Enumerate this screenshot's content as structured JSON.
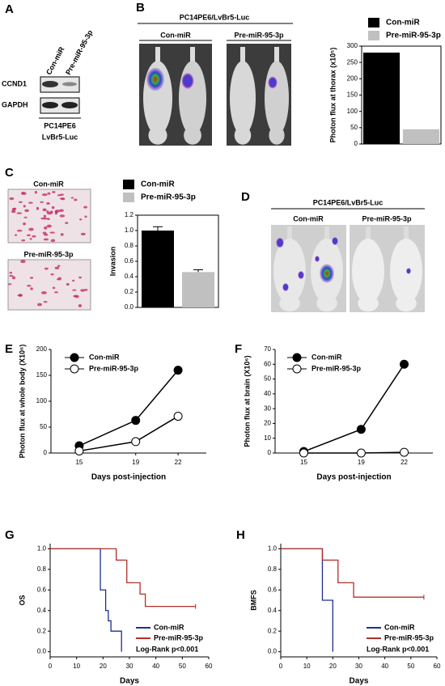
{
  "figure": {
    "panel_labels": [
      "A",
      "B",
      "C",
      "D",
      "E",
      "F",
      "G",
      "H"
    ],
    "blot": {
      "lanes": [
        "Con-miR",
        "Pre-miR-95-3p"
      ],
      "rows": [
        "CCND1",
        "GAPDH"
      ],
      "cell_line": [
        "PC14PE6",
        "LvBr5-Luc"
      ]
    },
    "b_images": {
      "title": "PC14PE6/LvBr5-Luc",
      "groups": [
        "Con-miR",
        "Pre-miR-95-3p"
      ]
    },
    "c_images": {
      "groups": [
        "Con-miR",
        "Pre-miR-95-3p"
      ]
    },
    "d_images": {
      "title": "PC14PE6/LvBr5-Luc",
      "groups": [
        "Con-miR",
        "Pre-miR-95-3p"
      ]
    }
  },
  "chart_data": [
    {
      "type": "bar",
      "categories": [
        "Con-miR",
        "Pre-miR-95-3p"
      ],
      "values": [
        280,
        45
      ],
      "colors": [
        "#000000",
        "#c0c0c0"
      ],
      "ylabel": "Photon flux at thorax (x10⁵)",
      "ylim": [
        0,
        300
      ],
      "yticks": [
        0,
        50,
        100,
        150,
        200,
        250,
        300
      ]
    },
    {
      "type": "bar",
      "categories": [
        "Con-miR",
        "Pre-miR-95-3p"
      ],
      "values": [
        1.0,
        0.46
      ],
      "errors": [
        0.05,
        0.03
      ],
      "colors": [
        "#000000",
        "#c0c0c0"
      ],
      "ylabel": "Invasion",
      "ylim": [
        0,
        1.2
      ],
      "yticks": [
        {
          "value": 0,
          "label": "0.0"
        },
        0.2,
        0.4,
        0.6,
        0.8,
        {
          "value": 1,
          "label": "1.0"
        },
        1.2
      ]
    },
    {
      "type": "line",
      "x": [
        15,
        19,
        22
      ],
      "xlim": [
        13,
        24
      ],
      "xticks": [
        15,
        19,
        22
      ],
      "ylim": [
        0,
        200
      ],
      "yticks": [
        0,
        50,
        100,
        150,
        200
      ],
      "xlabel": "Days post-injection",
      "ylabel": "Photon flux at whole body (X10⁶)",
      "series": [
        {
          "name": "Con-miR",
          "color": "#000000",
          "fill": "#000000",
          "values": [
            14,
            63,
            160
          ]
        },
        {
          "name": "Pre-miR-95-3p",
          "color": "#000000",
          "fill": "#ffffff",
          "values": [
            4,
            22,
            71
          ]
        }
      ]
    },
    {
      "type": "line",
      "x": [
        15,
        19,
        22
      ],
      "xlim": [
        13,
        24
      ],
      "xticks": [
        15,
        19,
        22
      ],
      "ylim": [
        0,
        70
      ],
      "yticks": [
        0,
        10,
        20,
        30,
        40,
        50,
        60,
        70
      ],
      "xlabel": "Days post-injection",
      "ylabel": "Photon flux at brain (X10⁶)",
      "series": [
        {
          "name": "Con-miR",
          "color": "#000000",
          "fill": "#000000",
          "values": [
            1,
            16,
            60
          ]
        },
        {
          "name": "Pre-miR-95-3p",
          "color": "#000000",
          "fill": "#ffffff",
          "values": [
            0,
            0,
            0.5
          ]
        }
      ]
    },
    {
      "type": "step",
      "xlim": [
        0,
        60
      ],
      "xticks": [
        0,
        10,
        20,
        30,
        40,
        50,
        60
      ],
      "ylim": [
        -0.05,
        1.05
      ],
      "yticks": [
        {
          "value": 0,
          "label": "0.0"
        },
        0.2,
        0.4,
        0.6,
        0.8,
        {
          "value": 1,
          "label": "1.0"
        }
      ],
      "xlabel": "Days",
      "ylabel": "OS",
      "annotation": "Log-Rank p<0.001",
      "series": [
        {
          "name": "Con-miR",
          "color": "#1f2f8f",
          "x": [
            0,
            19,
            21,
            22,
            23,
            27
          ],
          "values": [
            1,
            0.6,
            0.4,
            0.3,
            0.2,
            0
          ]
        },
        {
          "name": "Pre-miR-95-3p",
          "color": "#b0302a",
          "x": [
            0,
            25,
            29,
            34,
            36,
            55
          ],
          "values": [
            1,
            0.89,
            0.67,
            0.56,
            0.44,
            0.44
          ]
        }
      ]
    },
    {
      "type": "step",
      "xlim": [
        0,
        60
      ],
      "xticks": [
        0,
        10,
        20,
        30,
        40,
        50,
        60
      ],
      "ylim": [
        -0.05,
        1.05
      ],
      "yticks": [
        {
          "value": 0,
          "label": "0.0"
        },
        0.2,
        0.4,
        0.6,
        0.8,
        {
          "value": 1,
          "label": "1.0"
        }
      ],
      "xlabel": "Days",
      "ylabel": "BMFS",
      "annotation": "Log-Rank p<0.001",
      "series": [
        {
          "name": "Con-miR",
          "color": "#1f2f8f",
          "x": [
            0,
            16,
            20
          ],
          "values": [
            1,
            0.5,
            0
          ]
        },
        {
          "name": "Pre-miR-95-3p",
          "color": "#b0302a",
          "x": [
            0,
            16,
            22,
            28,
            55
          ],
          "values": [
            1,
            0.89,
            0.67,
            0.53,
            0.53
          ]
        }
      ]
    }
  ]
}
